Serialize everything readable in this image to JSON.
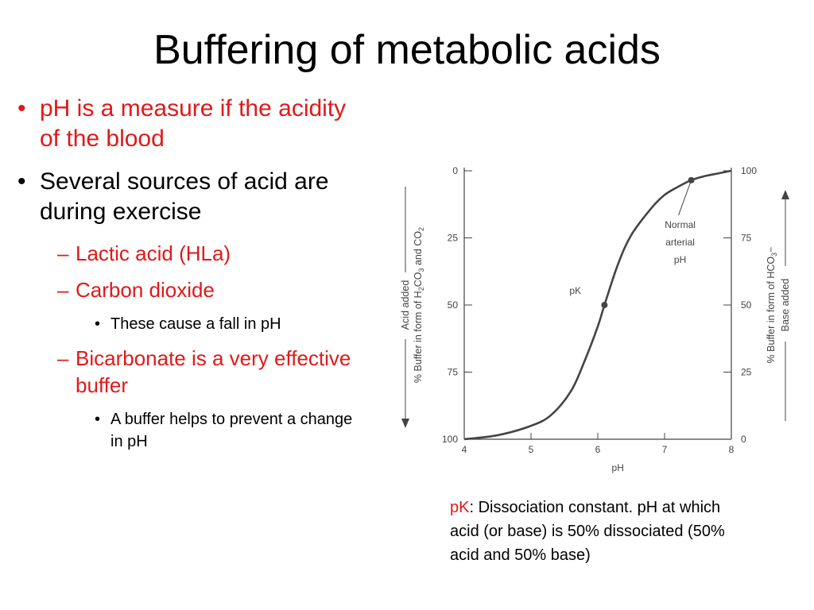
{
  "title": "Buffering of metabolic acids",
  "bullets": {
    "b1": "pH is a measure if the acidity of the blood",
    "b2": "Several sources of acid are during exercise",
    "b2_1": "Lactic acid (HLa)",
    "b2_2": "Carbon dioxide",
    "b2_2_1": "These cause a fall in pH",
    "b2_3": "Bicarbonate is a very effective buffer",
    "b2_3_1": "A buffer helps to prevent a change in pH"
  },
  "markers": {
    "bullet": "•",
    "dash": "–"
  },
  "caption": {
    "term": "pK",
    "text": ": Dissociation constant. pH at which acid (or base) is 50% dissociated (50% acid and 50% base)"
  },
  "colors": {
    "emphasis": "#e11919",
    "text": "#000000",
    "curve": "#444444"
  },
  "chart_data": {
    "type": "line",
    "xlabel": "pH",
    "x_ticks": [
      4,
      5,
      6,
      7,
      8
    ],
    "xlim": [
      4,
      8
    ],
    "left_axis": {
      "title_line1": "Acid added",
      "title_line2_parts": [
        "% Buffer in form of H",
        "2",
        "CO",
        "3",
        " and CO",
        "2"
      ],
      "ticks": [
        0,
        25,
        50,
        75,
        100
      ]
    },
    "right_axis": {
      "title_line1_parts": [
        "% Buffer in form of HCO",
        "3",
        "−"
      ],
      "title_line2": "Base added",
      "ticks": [
        0,
        25,
        50,
        75,
        100
      ]
    },
    "series": [
      {
        "x": [
          4.0,
          4.5,
          5.0,
          5.3,
          5.6,
          5.8,
          6.0,
          6.1,
          6.3,
          6.5,
          6.8,
          7.0,
          7.2,
          7.4,
          7.6,
          7.8,
          8.0
        ],
        "y": [
          0,
          1.5,
          5,
          9,
          18,
          29,
          42,
          50,
          65,
          76,
          86,
          91,
          94,
          96.5,
          98,
          99,
          100
        ]
      }
    ],
    "annotations": {
      "pk": {
        "label": "pK",
        "x": 6.1,
        "y": 50
      },
      "normal": {
        "lines": [
          "Normal",
          "arterial",
          "pH"
        ],
        "x": 7.4,
        "y": 96.5
      }
    }
  }
}
